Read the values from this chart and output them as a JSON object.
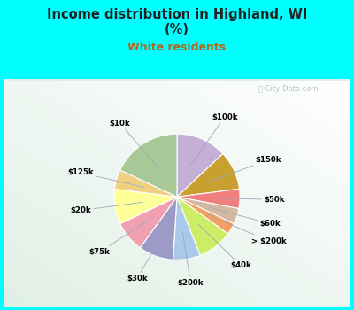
{
  "title": "Income distribution in Highland, WI\n(%)",
  "subtitle": "White residents",
  "bg_color": "#00FFFF",
  "chart_bg_color": "#d8ede0",
  "labels_clockwise": [
    "$100k",
    "$150k",
    "$50k",
    "$60k",
    "> $200k",
    "$40k",
    "$200k",
    "$30k",
    "$75k",
    "$20k",
    "$125k",
    "$10k"
  ],
  "values_clockwise": [
    13,
    10,
    5,
    4,
    3,
    9,
    7,
    9,
    8,
    9,
    5,
    18
  ],
  "colors_clockwise": [
    "#c5afd6",
    "#c8a030",
    "#f08080",
    "#d4b8a0",
    "#f4a060",
    "#ccee66",
    "#aac8e8",
    "#9e9ac8",
    "#f0a0b0",
    "#ffff99",
    "#f0d080",
    "#a8c898"
  ],
  "startangle": 90,
  "watermark": "City-Data.com"
}
